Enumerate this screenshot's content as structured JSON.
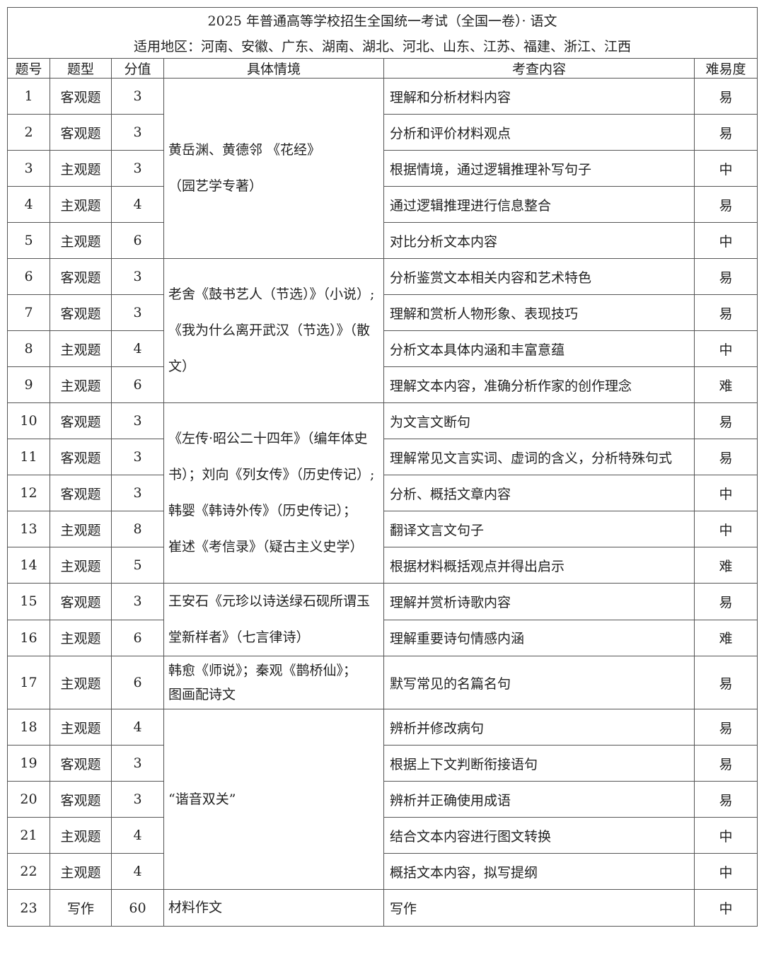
{
  "header": {
    "title": "2025 年普通高等学校招生全国统一考试（全国一卷）· 语文",
    "regions": "适用地区：河南、安徽、广东、湖南、湖北、河北、山东、江苏、福建、浙江、江西"
  },
  "columns": [
    "题号",
    "题型",
    "分值",
    "具体情境",
    "考查内容",
    "难易度"
  ],
  "groups": [
    {
      "context_lines": [
        "黄岳渊、黄德邻 《花经》",
        "（园艺学专著）"
      ],
      "rows": [
        {
          "no": "1",
          "type": "客观题",
          "score": "3",
          "content": "理解和分析材料内容",
          "difficulty": "易"
        },
        {
          "no": "2",
          "type": "客观题",
          "score": "3",
          "content": "分析和评价材料观点",
          "difficulty": "易"
        },
        {
          "no": "3",
          "type": "主观题",
          "score": "3",
          "content": "根据情境，通过逻辑推理补写句子",
          "difficulty": "中"
        },
        {
          "no": "4",
          "type": "主观题",
          "score": "4",
          "content": "通过逻辑推理进行信息整合",
          "difficulty": "易"
        },
        {
          "no": "5",
          "type": "主观题",
          "score": "6",
          "content": "对比分析文本内容",
          "difficulty": "中"
        }
      ]
    },
    {
      "context_lines": [
        "老舍《鼓书艺人（节选）》（小说）;",
        "《我为什么离开武汉（节选）》（散",
        "文）"
      ],
      "rows": [
        {
          "no": "6",
          "type": "客观题",
          "score": "3",
          "content": "分析鉴赏文本相关内容和艺术特色",
          "difficulty": "易"
        },
        {
          "no": "7",
          "type": "客观题",
          "score": "3",
          "content": "理解和赏析人物形象、表现技巧",
          "difficulty": "易"
        },
        {
          "no": "8",
          "type": "主观题",
          "score": "4",
          "content": "分析文本具体内涵和丰富意蕴",
          "difficulty": "中"
        },
        {
          "no": "9",
          "type": "主观题",
          "score": "6",
          "content": "理解文本内容，准确分析作家的创作理念",
          "difficulty": "难"
        }
      ]
    },
    {
      "context_lines": [
        "《左传·昭公二十四年》（编年体史",
        "书）；刘向《列女传》（历史传记）;",
        "韩婴《韩诗外传》（历史传记）；",
        "崔述《考信录》（疑古主义史学）"
      ],
      "rows": [
        {
          "no": "10",
          "type": "客观题",
          "score": "3",
          "content": "为文言文断句",
          "difficulty": "易"
        },
        {
          "no": "11",
          "type": "客观题",
          "score": "3",
          "content": "理解常见文言实词、虚词的含义，分析特殊句式",
          "difficulty": "易"
        },
        {
          "no": "12",
          "type": "客观题",
          "score": "3",
          "content": "分析、概括文章内容",
          "difficulty": "中"
        },
        {
          "no": "13",
          "type": "主观题",
          "score": "8",
          "content": "翻译文言文句子",
          "difficulty": "中"
        },
        {
          "no": "14",
          "type": "主观题",
          "score": "5",
          "content": "根据材料概括观点并得出启示",
          "difficulty": "难"
        }
      ]
    },
    {
      "context_lines": [
        "王安石《元珍以诗送绿石砚所谓玉",
        "堂新样者》（七言律诗）"
      ],
      "rows": [
        {
          "no": "15",
          "type": "客观题",
          "score": "3",
          "content": "理解并赏析诗歌内容",
          "difficulty": "易"
        },
        {
          "no": "16",
          "type": "主观题",
          "score": "6",
          "content": "理解重要诗句情感内涵",
          "difficulty": "难"
        }
      ]
    },
    {
      "context_lines": [
        "韩愈《师说》；秦观《鹊桥仙》；",
        "图画配诗文"
      ],
      "tight": true,
      "rows": [
        {
          "no": "17",
          "type": "主观题",
          "score": "6",
          "content": "默写常见的名篇名句",
          "difficulty": "易"
        }
      ]
    },
    {
      "context_lines": [
        "“谐音双关”"
      ],
      "rows": [
        {
          "no": "18",
          "type": "主观题",
          "score": "4",
          "content": "辨析并修改病句",
          "difficulty": "易"
        },
        {
          "no": "19",
          "type": "客观题",
          "score": "3",
          "content": "根据上下文判断衔接语句",
          "difficulty": "易"
        },
        {
          "no": "20",
          "type": "客观题",
          "score": "3",
          "content": "辨析并正确使用成语",
          "difficulty": "易"
        },
        {
          "no": "21",
          "type": "主观题",
          "score": "4",
          "content": "结合文本内容进行图文转换",
          "difficulty": "中"
        },
        {
          "no": "22",
          "type": "主观题",
          "score": "4",
          "content": "概括文本内容，拟写提纲",
          "difficulty": "中"
        }
      ]
    },
    {
      "context_lines": [
        "材料作文"
      ],
      "rows": [
        {
          "no": "23",
          "type": "写作",
          "score": "60",
          "content": "写作",
          "difficulty": "中"
        }
      ]
    }
  ]
}
